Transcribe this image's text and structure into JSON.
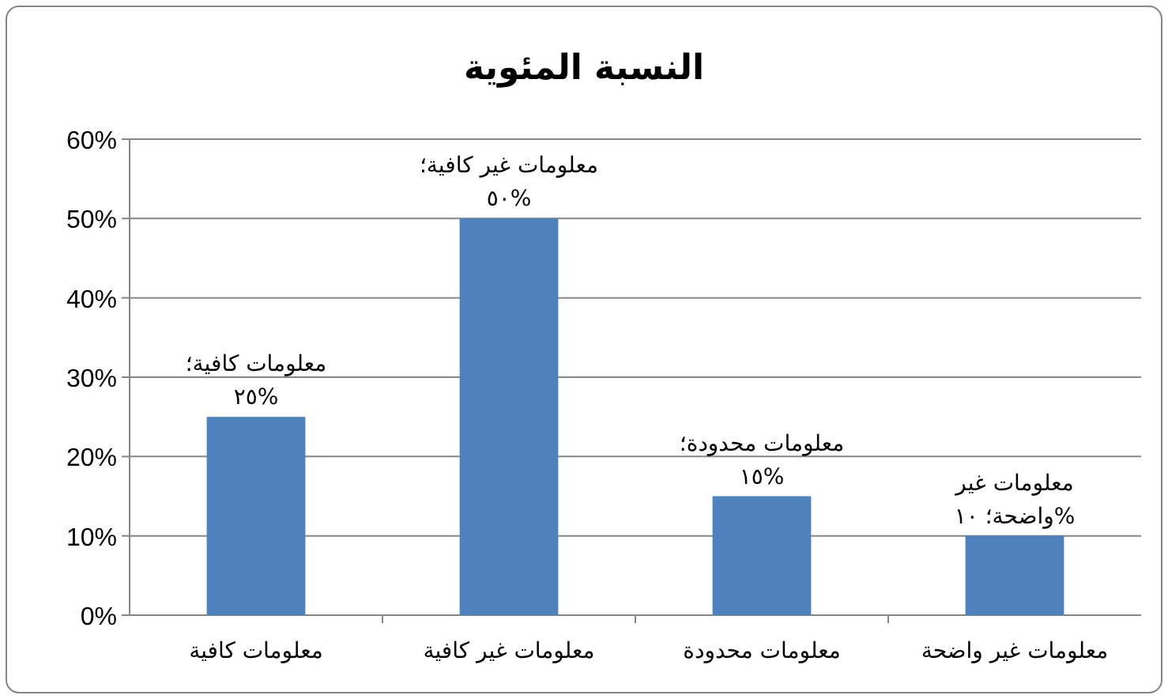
{
  "chart_data": {
    "type": "bar",
    "title": "النسبة المئوية",
    "categories": [
      "معلومات كافية",
      "معلومات غير كافية",
      "معلومات محدودة",
      "معلومات غير واضحة"
    ],
    "values": [
      25,
      50,
      15,
      10
    ],
    "color": "#4f81bd",
    "value_labels": [
      "معلومات كافية؛\n٢٥%",
      "معلومات غير كافية؛\n٥٠%",
      "معلومات محدودة؛\n١٥%",
      "معلومات غير\nواضحة؛ ١٠%"
    ],
    "ylim": [
      0,
      60
    ],
    "yticks": [
      {
        "value": 0,
        "label": "0%"
      },
      {
        "value": 10,
        "label": "10%"
      },
      {
        "value": 20,
        "label": "20%"
      },
      {
        "value": 30,
        "label": "30%"
      },
      {
        "value": 40,
        "label": "40%"
      },
      {
        "value": 50,
        "label": "50%"
      },
      {
        "value": 60,
        "label": "60%"
      }
    ],
    "grid": "y"
  }
}
